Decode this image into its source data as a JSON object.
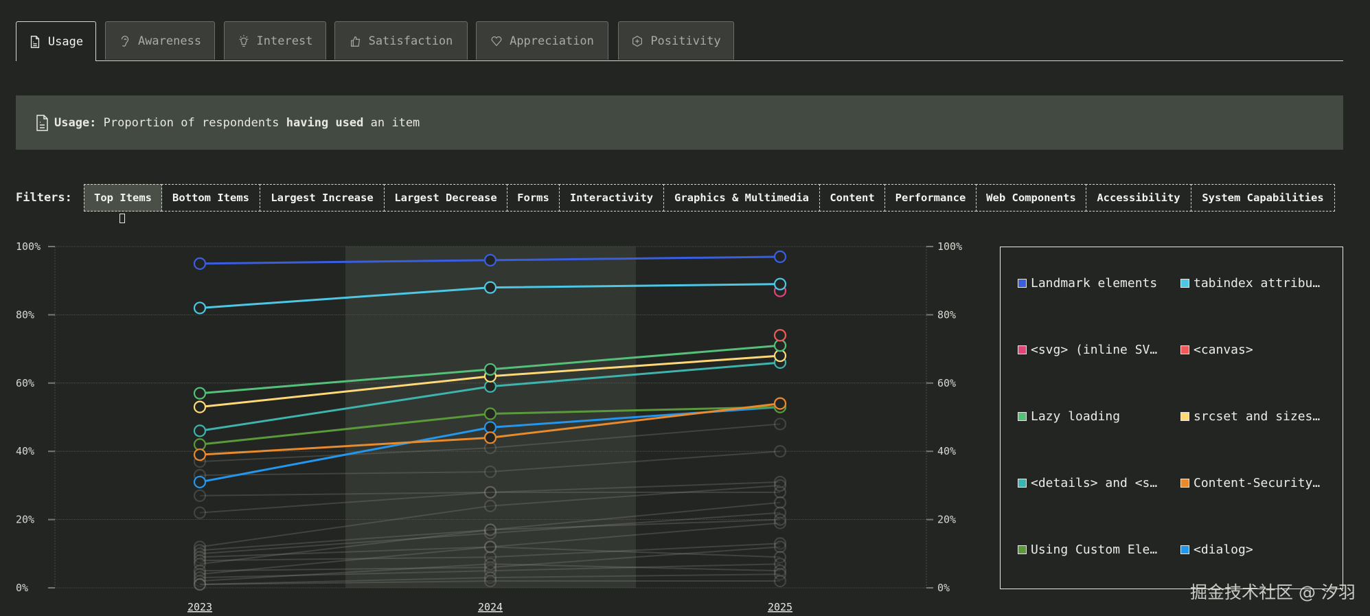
{
  "tabs": [
    {
      "label": "Usage",
      "icon": "file-icon",
      "active": true
    },
    {
      "label": "Awareness",
      "icon": "ear-icon",
      "active": false
    },
    {
      "label": "Interest",
      "icon": "lightbulb-icon",
      "active": false
    },
    {
      "label": "Satisfaction",
      "icon": "thumbs-up-icon",
      "active": false
    },
    {
      "label": "Appreciation",
      "icon": "heart-icon",
      "active": false
    },
    {
      "label": "Positivity",
      "icon": "plus-hexagon-icon",
      "active": false
    }
  ],
  "banner": {
    "title": "Usage:",
    "text_1": "Proportion of respondents",
    "bold": "having used",
    "text_2": "an item"
  },
  "filters": {
    "label": "Filters:",
    "items": [
      "Top Items",
      "Bottom Items",
      "Largest Increase",
      "Largest Decrease",
      "Forms",
      "Interactivity",
      "Graphics & Multimedia",
      "Content",
      "Performance",
      "Web Components",
      "Accessibility",
      "System Capabilities"
    ],
    "active": "Top Items"
  },
  "chart_data": {
    "type": "line",
    "x": [
      "2023",
      "2024",
      "2025"
    ],
    "ylim": [
      0,
      100
    ],
    "yticks": [
      "0%",
      "20%",
      "40%",
      "60%",
      "80%",
      "100%"
    ],
    "grid": true,
    "legend": "right",
    "highlighted_x": "2024",
    "series": [
      {
        "name": "Landmark elements",
        "color": "#3a5ee0",
        "values": [
          95,
          96,
          97
        ]
      },
      {
        "name": "tabindex attribu…",
        "color": "#4cc8e6",
        "values": [
          82,
          88,
          89
        ]
      },
      {
        "name": "<svg> (inline SV…",
        "color": "#e0457b",
        "values": [
          null,
          null,
          87
        ]
      },
      {
        "name": "<canvas>",
        "color": "#ef5b5b",
        "values": [
          null,
          null,
          74
        ]
      },
      {
        "name": "Lazy loading",
        "color": "#55c07a",
        "values": [
          57,
          64,
          71
        ]
      },
      {
        "name": "srcset and sizes…",
        "color": "#ffd978",
        "values": [
          53,
          62,
          68
        ]
      },
      {
        "name": "<details> and <s…",
        "color": "#3fb3ad",
        "values": [
          46,
          59,
          66
        ]
      },
      {
        "name": "Content-Security…",
        "color": "#e88a2e",
        "values": [
          39,
          44,
          54
        ]
      },
      {
        "name": "Using Custom Ele…",
        "color": "#5a9a3a",
        "values": [
          42,
          51,
          53
        ]
      },
      {
        "name": "<dialog>",
        "color": "#2496ed",
        "values": [
          31,
          47,
          53
        ]
      }
    ],
    "background_series": [
      [
        37,
        41,
        48
      ],
      [
        33,
        34,
        40
      ],
      [
        27,
        28,
        31
      ],
      [
        22,
        28,
        28
      ],
      [
        12,
        24,
        30
      ],
      [
        11,
        17,
        25
      ],
      [
        10,
        16,
        22
      ],
      [
        9,
        12,
        19
      ],
      [
        8,
        9,
        13
      ],
      [
        7,
        17,
        20
      ],
      [
        5,
        6,
        12
      ],
      [
        4,
        12,
        9
      ],
      [
        3,
        5,
        7
      ],
      [
        2,
        7,
        5
      ],
      [
        1,
        3,
        4
      ],
      [
        1,
        2,
        2
      ]
    ]
  },
  "watermark": "掘金技术社区 @ 汐羽"
}
